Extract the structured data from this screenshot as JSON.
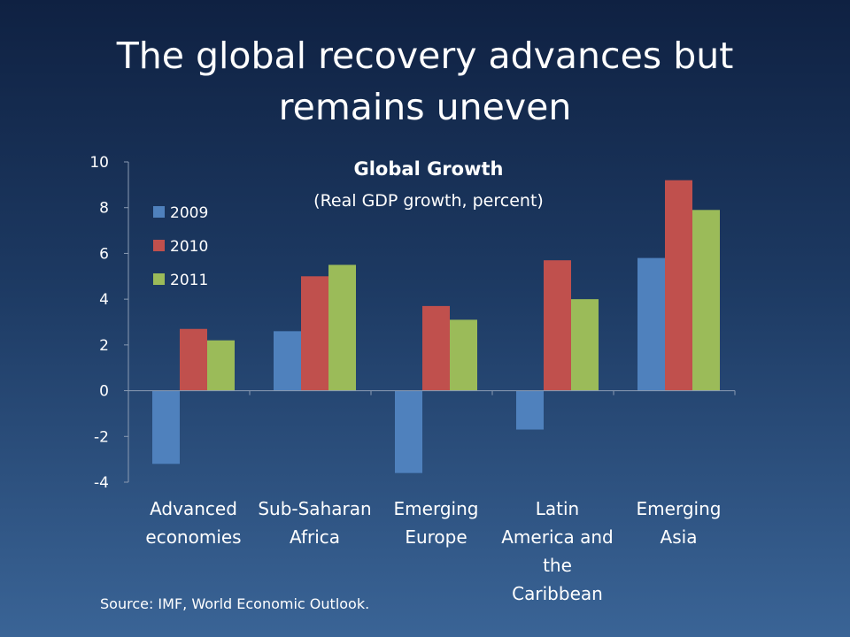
{
  "slide": {
    "title_line1": "The global recovery advances but",
    "title_line2": "remains uneven",
    "source": "Source: IMF, World Economic Outlook."
  },
  "chart_data": {
    "type": "bar",
    "title": "Global Growth",
    "subtitle": "(Real GDP growth, percent)",
    "categories": [
      [
        "Advanced",
        "economies"
      ],
      [
        "Sub-Saharan",
        "Africa"
      ],
      [
        "Emerging",
        "Europe"
      ],
      [
        "Latin",
        "America and",
        "the",
        "Caribbean"
      ],
      [
        "Emerging",
        "Asia"
      ]
    ],
    "series": [
      {
        "name": "2009",
        "color": "#4f81bd",
        "values": [
          -3.2,
          2.6,
          -3.6,
          -1.7,
          5.8
        ]
      },
      {
        "name": "2010",
        "color": "#c0504d",
        "values": [
          2.7,
          5.0,
          3.7,
          5.7,
          9.2
        ]
      },
      {
        "name": "2011",
        "color": "#9bbb59",
        "values": [
          2.2,
          5.5,
          3.1,
          4.0,
          7.9
        ]
      }
    ],
    "ylim": [
      -4,
      10
    ],
    "yticks": [
      -4,
      -2,
      0,
      2,
      4,
      6,
      8,
      10
    ],
    "grid": false,
    "legend": "top-left"
  }
}
